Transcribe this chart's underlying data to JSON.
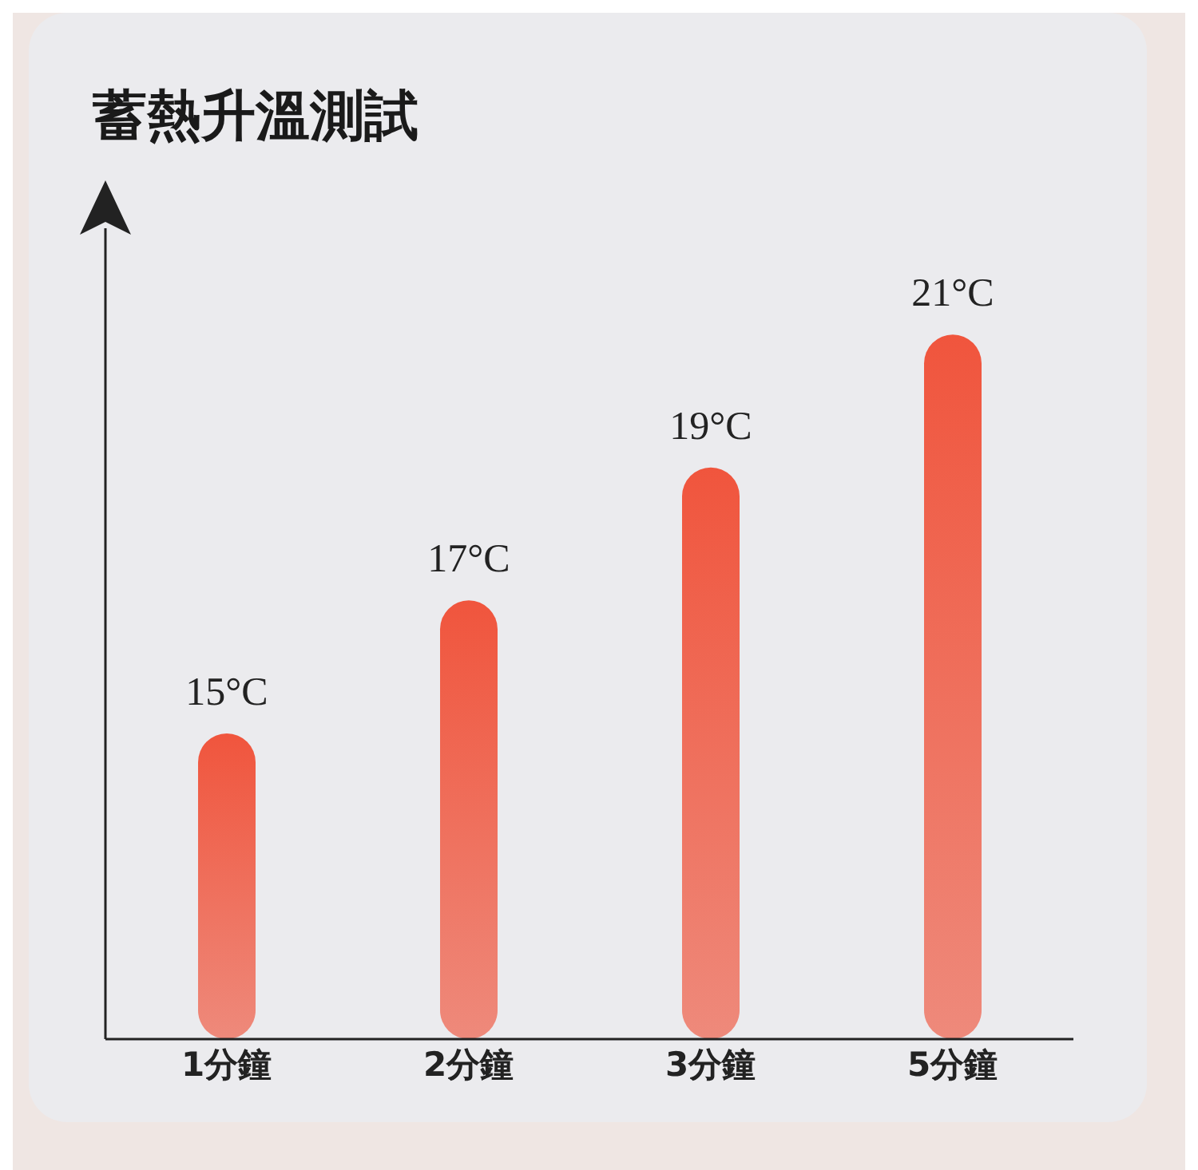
{
  "chart_data": {
    "type": "bar",
    "title": "蓄熱升溫測試",
    "categories": [
      "1分鐘",
      "2分鐘",
      "3分鐘",
      "5分鐘"
    ],
    "values": [
      15,
      17,
      19,
      21
    ],
    "value_labels": [
      "15°C",
      "17°C",
      "19°C",
      "21°C"
    ],
    "color": "#f0553d",
    "ylim": [
      10.4,
      22.6
    ],
    "tick_labels": "x"
  }
}
